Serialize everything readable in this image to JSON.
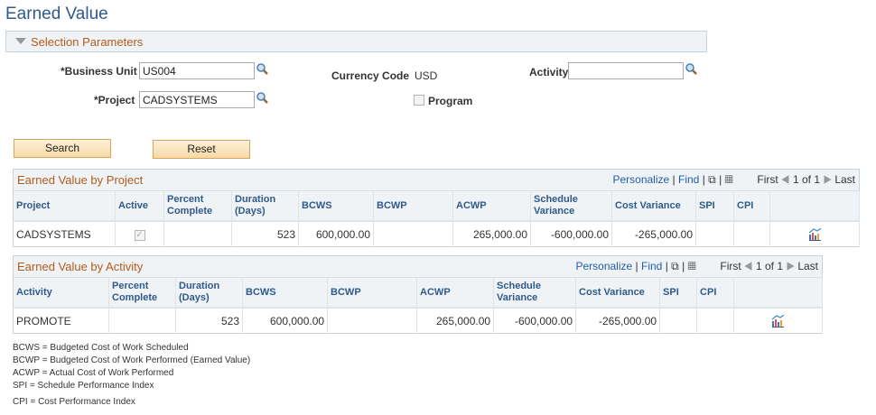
{
  "page": {
    "title": "Earned Value"
  },
  "selection": {
    "title": "Selection Parameters",
    "business_unit_label": "*Business Unit",
    "business_unit": "US004",
    "project_label": "*Project",
    "project": "CADSYSTEMS",
    "currency_label": "Currency Code",
    "currency": "USD",
    "activity_label": "Activity",
    "activity": "",
    "program_label": "Program",
    "program_checked": false
  },
  "buttons": {
    "search": "Search",
    "reset": "Reset"
  },
  "nav": {
    "personalize": "Personalize",
    "find": "Find",
    "first": "First",
    "count": "1 of 1",
    "last": "Last",
    "sep": "|"
  },
  "project_grid": {
    "title": "Earned Value by Project",
    "columns": [
      "Project",
      "Active",
      "Percent Complete",
      "Duration (Days)",
      "BCWS",
      "BCWP",
      "ACWP",
      "Schedule Variance",
      "Cost Variance",
      "SPI",
      "CPI"
    ],
    "rows": [
      {
        "project": "CADSYSTEMS",
        "active": true,
        "percent": "",
        "duration": "523",
        "bcws": "600,000.00",
        "bcwp": "",
        "acwp": "265,000.00",
        "sv": "-600,000.00",
        "cv": "-265,000.00",
        "spi": "",
        "cpi": ""
      }
    ]
  },
  "activity_grid": {
    "title": "Earned Value by Activity",
    "columns": [
      "Activity",
      "Percent Complete",
      "Duration (Days)",
      "BCWS",
      "BCWP",
      "ACWP",
      "Schedule Variance",
      "Cost Variance",
      "SPI",
      "CPI"
    ],
    "rows": [
      {
        "activity": "PROMOTE",
        "percent": "",
        "duration": "523",
        "bcws": "600,000.00",
        "bcwp": "",
        "acwp": "265,000.00",
        "sv": "-600,000.00",
        "cv": "-265,000.00",
        "spi": "",
        "cpi": ""
      }
    ]
  },
  "legend": [
    "BCWS = Budgeted Cost of Work Scheduled",
    "BCWP = Budgeted Cost of Work Performed (Earned Value)",
    "ACWP = Actual Cost of Work Performed",
    "SPI = Schedule Performance Index",
    "CPI = Cost Performance Index"
  ]
}
